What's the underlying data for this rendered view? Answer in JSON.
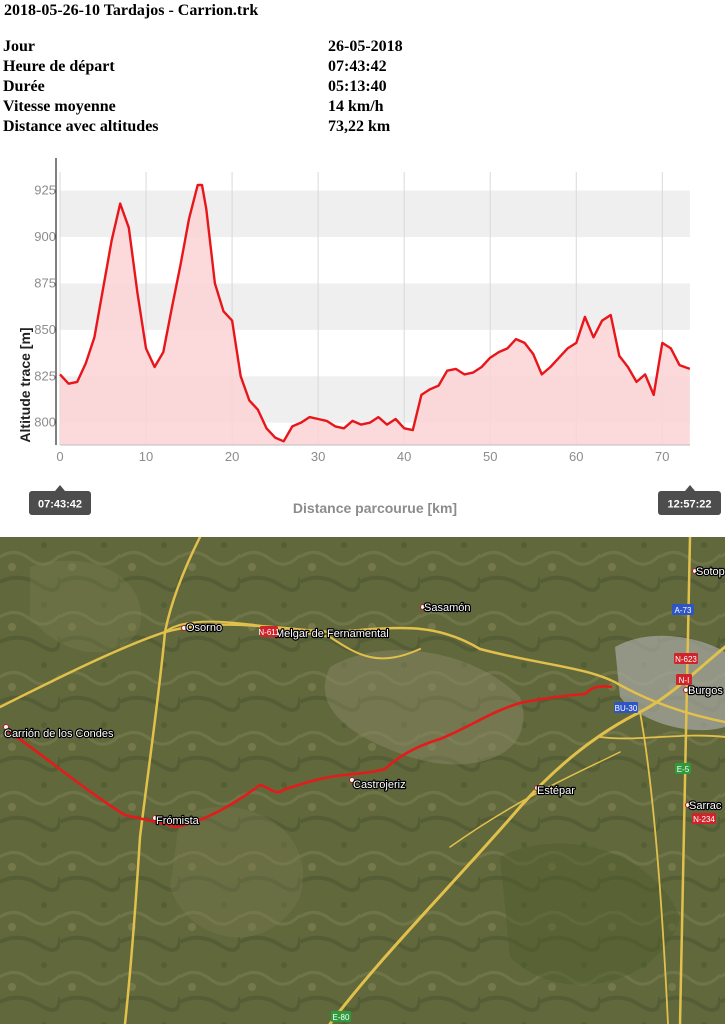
{
  "header": {
    "title": "2018-05-26-10 Tardajos - Carrion.trk"
  },
  "info": [
    {
      "label": "Jour",
      "value": "26-05-2018"
    },
    {
      "label": "Heure de départ",
      "value": "07:43:42"
    },
    {
      "label": "Durée",
      "value": "05:13:40"
    },
    {
      "label": "Vitesse moyenne",
      "value": "14 km/h"
    },
    {
      "label": "Distance avec altitudes",
      "value": "73,22 km"
    }
  ],
  "chart_data": {
    "type": "area",
    "title": "",
    "xlabel": "Distance parcourue [km]",
    "ylabel": "Altitude trace [m]",
    "xlim": [
      0,
      73.22
    ],
    "ylim": [
      788,
      935
    ],
    "x_ticks": [
      0,
      10,
      20,
      30,
      40,
      50,
      60,
      70
    ],
    "y_ticks": [
      800,
      825,
      850,
      875,
      900,
      925
    ],
    "grid": true,
    "start_time": "07:43:42",
    "end_time": "12:57:22",
    "colors": {
      "line": "#e8161b",
      "fill": "#fcd4d6",
      "band": "#efefef",
      "grid": "#d9d9d9",
      "axis_text": "#8c8c8c"
    },
    "series": [
      {
        "x": [
          0,
          1,
          2,
          3,
          4,
          5,
          6,
          7,
          8,
          9,
          10,
          11,
          12,
          13,
          14,
          15,
          16,
          16.5,
          17,
          18,
          19,
          20,
          21,
          22,
          23,
          24,
          25,
          26,
          27,
          28,
          29,
          30,
          31,
          32,
          33,
          34,
          35,
          36,
          37,
          38,
          39,
          40,
          41,
          42,
          43,
          44,
          45,
          46,
          47,
          48,
          49,
          50,
          51,
          52,
          53,
          54,
          55,
          56,
          57,
          58,
          59,
          60,
          61,
          62,
          63,
          64,
          65,
          66,
          67,
          68,
          69,
          70,
          71,
          72,
          73.2
        ],
        "y": [
          826,
          821,
          822,
          832,
          846,
          872,
          898,
          918,
          905,
          870,
          840,
          830,
          838,
          862,
          885,
          910,
          928,
          928,
          915,
          875,
          860,
          855,
          825,
          812,
          807,
          797,
          792,
          790,
          798,
          800,
          803,
          802,
          801,
          798,
          797,
          801,
          799,
          800,
          803,
          799,
          802,
          797,
          796,
          815,
          818,
          820,
          828,
          829,
          826,
          827,
          830,
          835,
          838,
          840,
          845,
          843,
          837,
          826,
          830,
          835,
          840,
          843,
          857,
          846,
          855,
          858,
          836,
          830,
          822,
          826,
          815,
          843,
          840,
          831,
          829
        ]
      }
    ]
  },
  "map": {
    "labels": [
      {
        "text": "Osorno",
        "kind": "town"
      },
      {
        "text": "Melgar de Fernamental",
        "kind": "town"
      },
      {
        "text": "Sasamón",
        "kind": "town"
      },
      {
        "text": "Sotop",
        "kind": "town"
      },
      {
        "text": "Burgos",
        "kind": "town"
      },
      {
        "text": "Carrión de los Condes",
        "kind": "town"
      },
      {
        "text": "Frómista",
        "kind": "town"
      },
      {
        "text": "Castrojeriz",
        "kind": "town"
      },
      {
        "text": "Estépar",
        "kind": "town"
      },
      {
        "text": "Sarrac",
        "kind": "town"
      }
    ],
    "shields": [
      {
        "text": "A-73",
        "color": "#2f54c4"
      },
      {
        "text": "N-623",
        "color": "#d0242b"
      },
      {
        "text": "N-I",
        "color": "#d0242b"
      },
      {
        "text": "BU-30",
        "color": "#2f54c4"
      },
      {
        "text": "E-5",
        "color": "#2f9a3c"
      },
      {
        "text": "N-234",
        "color": "#d0242b"
      },
      {
        "text": "E-80",
        "color": "#2f9a3c"
      },
      {
        "text": "N-611",
        "color": "#d0242b"
      }
    ]
  }
}
